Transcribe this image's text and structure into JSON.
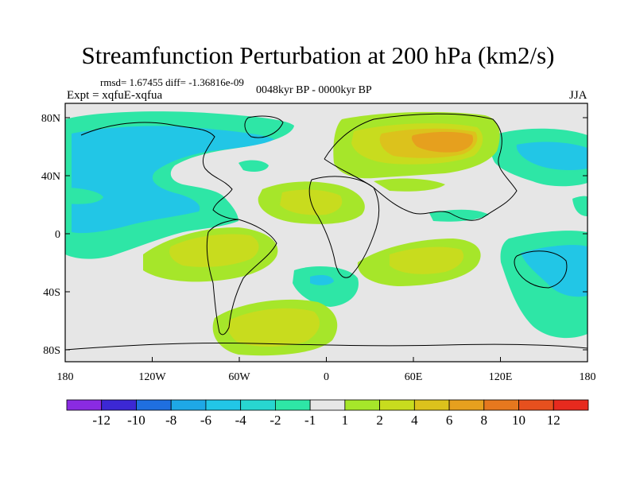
{
  "title": "Streamfunction Perturbation at 200 hPa (km2/s)",
  "stats": "rmsd= 1.67455 diff= -1.36816e-09",
  "experiment": "Expt = xqfuE-xqfua",
  "period": "0048kyr BP - 0000kyr BP",
  "season": "JJA",
  "lat_ticks": [
    "80N",
    "40N",
    "0",
    "40S",
    "80S"
  ],
  "lon_ticks": [
    "180",
    "120W",
    "60W",
    "0",
    "60E",
    "120E",
    "180"
  ],
  "colorbar": {
    "colors": [
      "#8a2be2",
      "#3c28d4",
      "#1f6fe0",
      "#1ea8e6",
      "#22c6e6",
      "#28d6d0",
      "#2ee6a6",
      "#e6e6e6",
      "#a6e62a",
      "#c8dc1e",
      "#dcc21c",
      "#e6a01e",
      "#e6781e",
      "#e6501e",
      "#e62a1e"
    ],
    "labels": [
      "-12",
      "-10",
      "-8",
      "-6",
      "-4",
      "-2",
      "-1",
      "1",
      "2",
      "4",
      "6",
      "8",
      "10",
      "12"
    ]
  }
}
